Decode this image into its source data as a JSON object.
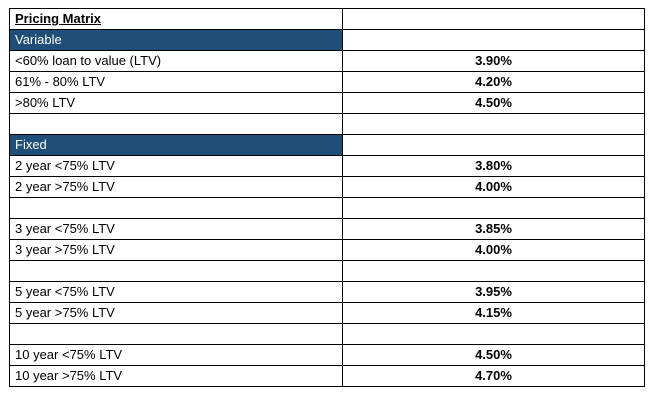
{
  "title": "Pricing Matrix",
  "header_fill": "#1f4e79",
  "rows": [
    {
      "type": "section",
      "label": "Variable"
    },
    {
      "type": "rate",
      "label": "<60% loan to value (LTV)",
      "rate": "3.90%"
    },
    {
      "type": "rate",
      "label": "61% - 80% LTV",
      "rate": "4.20%"
    },
    {
      "type": "rate",
      "label": ">80% LTV",
      "rate": "4.50%"
    },
    {
      "type": "blank"
    },
    {
      "type": "section",
      "label": "Fixed"
    },
    {
      "type": "rate",
      "label": "2 year <75% LTV",
      "rate": "3.80%"
    },
    {
      "type": "rate",
      "label": "2 year >75% LTV",
      "rate": "4.00%"
    },
    {
      "type": "blank"
    },
    {
      "type": "rate",
      "label": "3 year <75% LTV",
      "rate": "3.85%"
    },
    {
      "type": "rate",
      "label": "3 year >75% LTV",
      "rate": "4.00%"
    },
    {
      "type": "blank"
    },
    {
      "type": "rate",
      "label": "5 year <75% LTV",
      "rate": "3.95%"
    },
    {
      "type": "rate",
      "label": "5 year >75% LTV",
      "rate": "4.15%"
    },
    {
      "type": "blank"
    },
    {
      "type": "rate",
      "label": "10 year <75% LTV",
      "rate": "4.50%"
    },
    {
      "type": "rate",
      "label": "10 year >75% LTV",
      "rate": "4.70%"
    }
  ]
}
